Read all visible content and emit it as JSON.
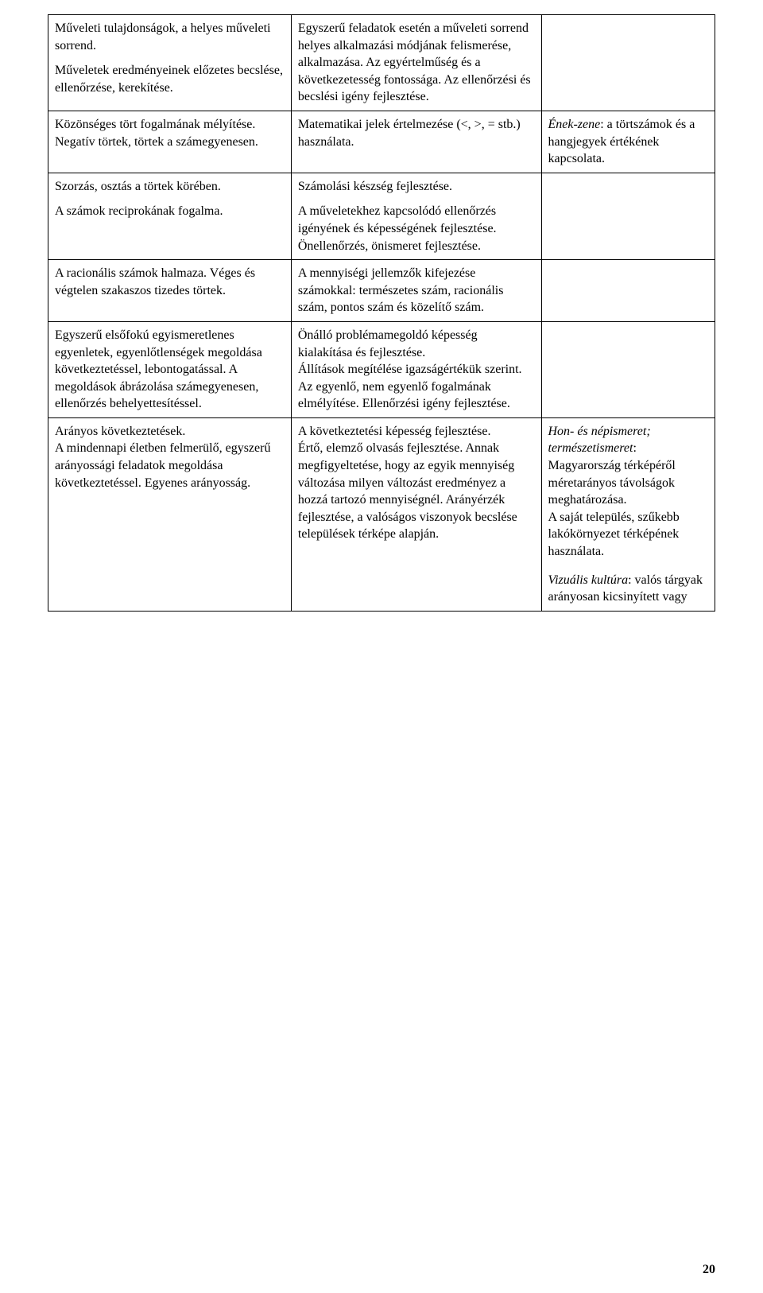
{
  "rows": [
    {
      "col1_paras": [
        "Műveleti tulajdonságok, a helyes műveleti sorrend.",
        "Műveletek eredményeinek előzetes becslése, ellenőrzése, kerekítése."
      ],
      "col2_paras": [
        "Egyszerű feladatok esetén a műveleti sorrend helyes alkalmazási módjának felismerése, alkalmazása. Az egyértelműség és a következetesség fontossága. Az ellenőrzési és becslési igény fejlesztése."
      ],
      "col3_paras": []
    },
    {
      "col1_paras": [
        "Közönséges tört fogalmának mélyítése. Negatív törtek, törtek a számegyenesen."
      ],
      "col2_paras": [
        "Matematikai jelek értelmezése (<, >, = stb.) használata."
      ],
      "col3_runs": [
        {
          "text": "Ének-zene",
          "italic": true
        },
        {
          "text": ": a törtszámok és a hangjegyek értékének kapcsolata.",
          "italic": false
        }
      ]
    },
    {
      "col1_paras": [
        "Szorzás, osztás a törtek körében.",
        "A számok reciprokának fogalma."
      ],
      "col2_paras": [
        "Számolási készség fejlesztése.",
        "A műveletekhez kapcsolódó ellenőrzés igényének és képességének fejlesztése. Önellenőrzés, önismeret fejlesztése."
      ],
      "col3_paras": []
    },
    {
      "col1_paras": [
        "A racionális számok halmaza. Véges és végtelen szakaszos tizedes törtek."
      ],
      "col2_paras": [
        "A mennyiségi jellemzők kifejezése számokkal: természetes szám, racionális szám, pontos szám és közelítő szám."
      ],
      "col3_paras": []
    },
    {
      "col1_paras": [
        "Egyszerű elsőfokú egyismeretlenes egyenletek, egyenlőtlenségek megoldása következtetéssel, lebontogatással. A megoldások ábrázolása számegyenesen, ellenőrzés behelyettesítéssel."
      ],
      "col2_paras": [
        "Önálló problémamegoldó képesség kialakítása és fejlesztése.\nÁllítások megítélése igazságértékük szerint. Az egyenlő, nem egyenlő fogalmának elmélyítése. Ellenőrzési igény fejlesztése."
      ],
      "col3_paras": []
    },
    {
      "col1_paras": [
        "Arányos következtetések.\nA mindennapi életben felmerülő, egyszerű arányossági feladatok megoldása következtetéssel. Egyenes arányosság."
      ],
      "col2_paras": [
        "A következtetési képesség fejlesztése.\nÉrtő, elemző olvasás fejlesztése. Annak megfigyeltetése, hogy az egyik mennyiség változása milyen változást eredményez a hozzá tartozó mennyiségnél. Arányérzék fejlesztése, a valóságos viszonyok becslése települések térképe alapján."
      ],
      "col3_blocks": [
        {
          "runs": [
            {
              "text": "Hon- és népismeret; természetismeret",
              "italic": true
            },
            {
              "text": ": Magyarország térképéről méretarányos távolságok meghatározása.\nA saját település, szűkebb lakókörnyezet térképének használata.",
              "italic": false
            }
          ]
        },
        {
          "runs": [
            {
              "text": "Vizuális kultúra",
              "italic": true
            },
            {
              "text": ": valós tárgyak arányosan kicsinyített vagy",
              "italic": false
            }
          ]
        }
      ]
    }
  ],
  "page_number": "20"
}
